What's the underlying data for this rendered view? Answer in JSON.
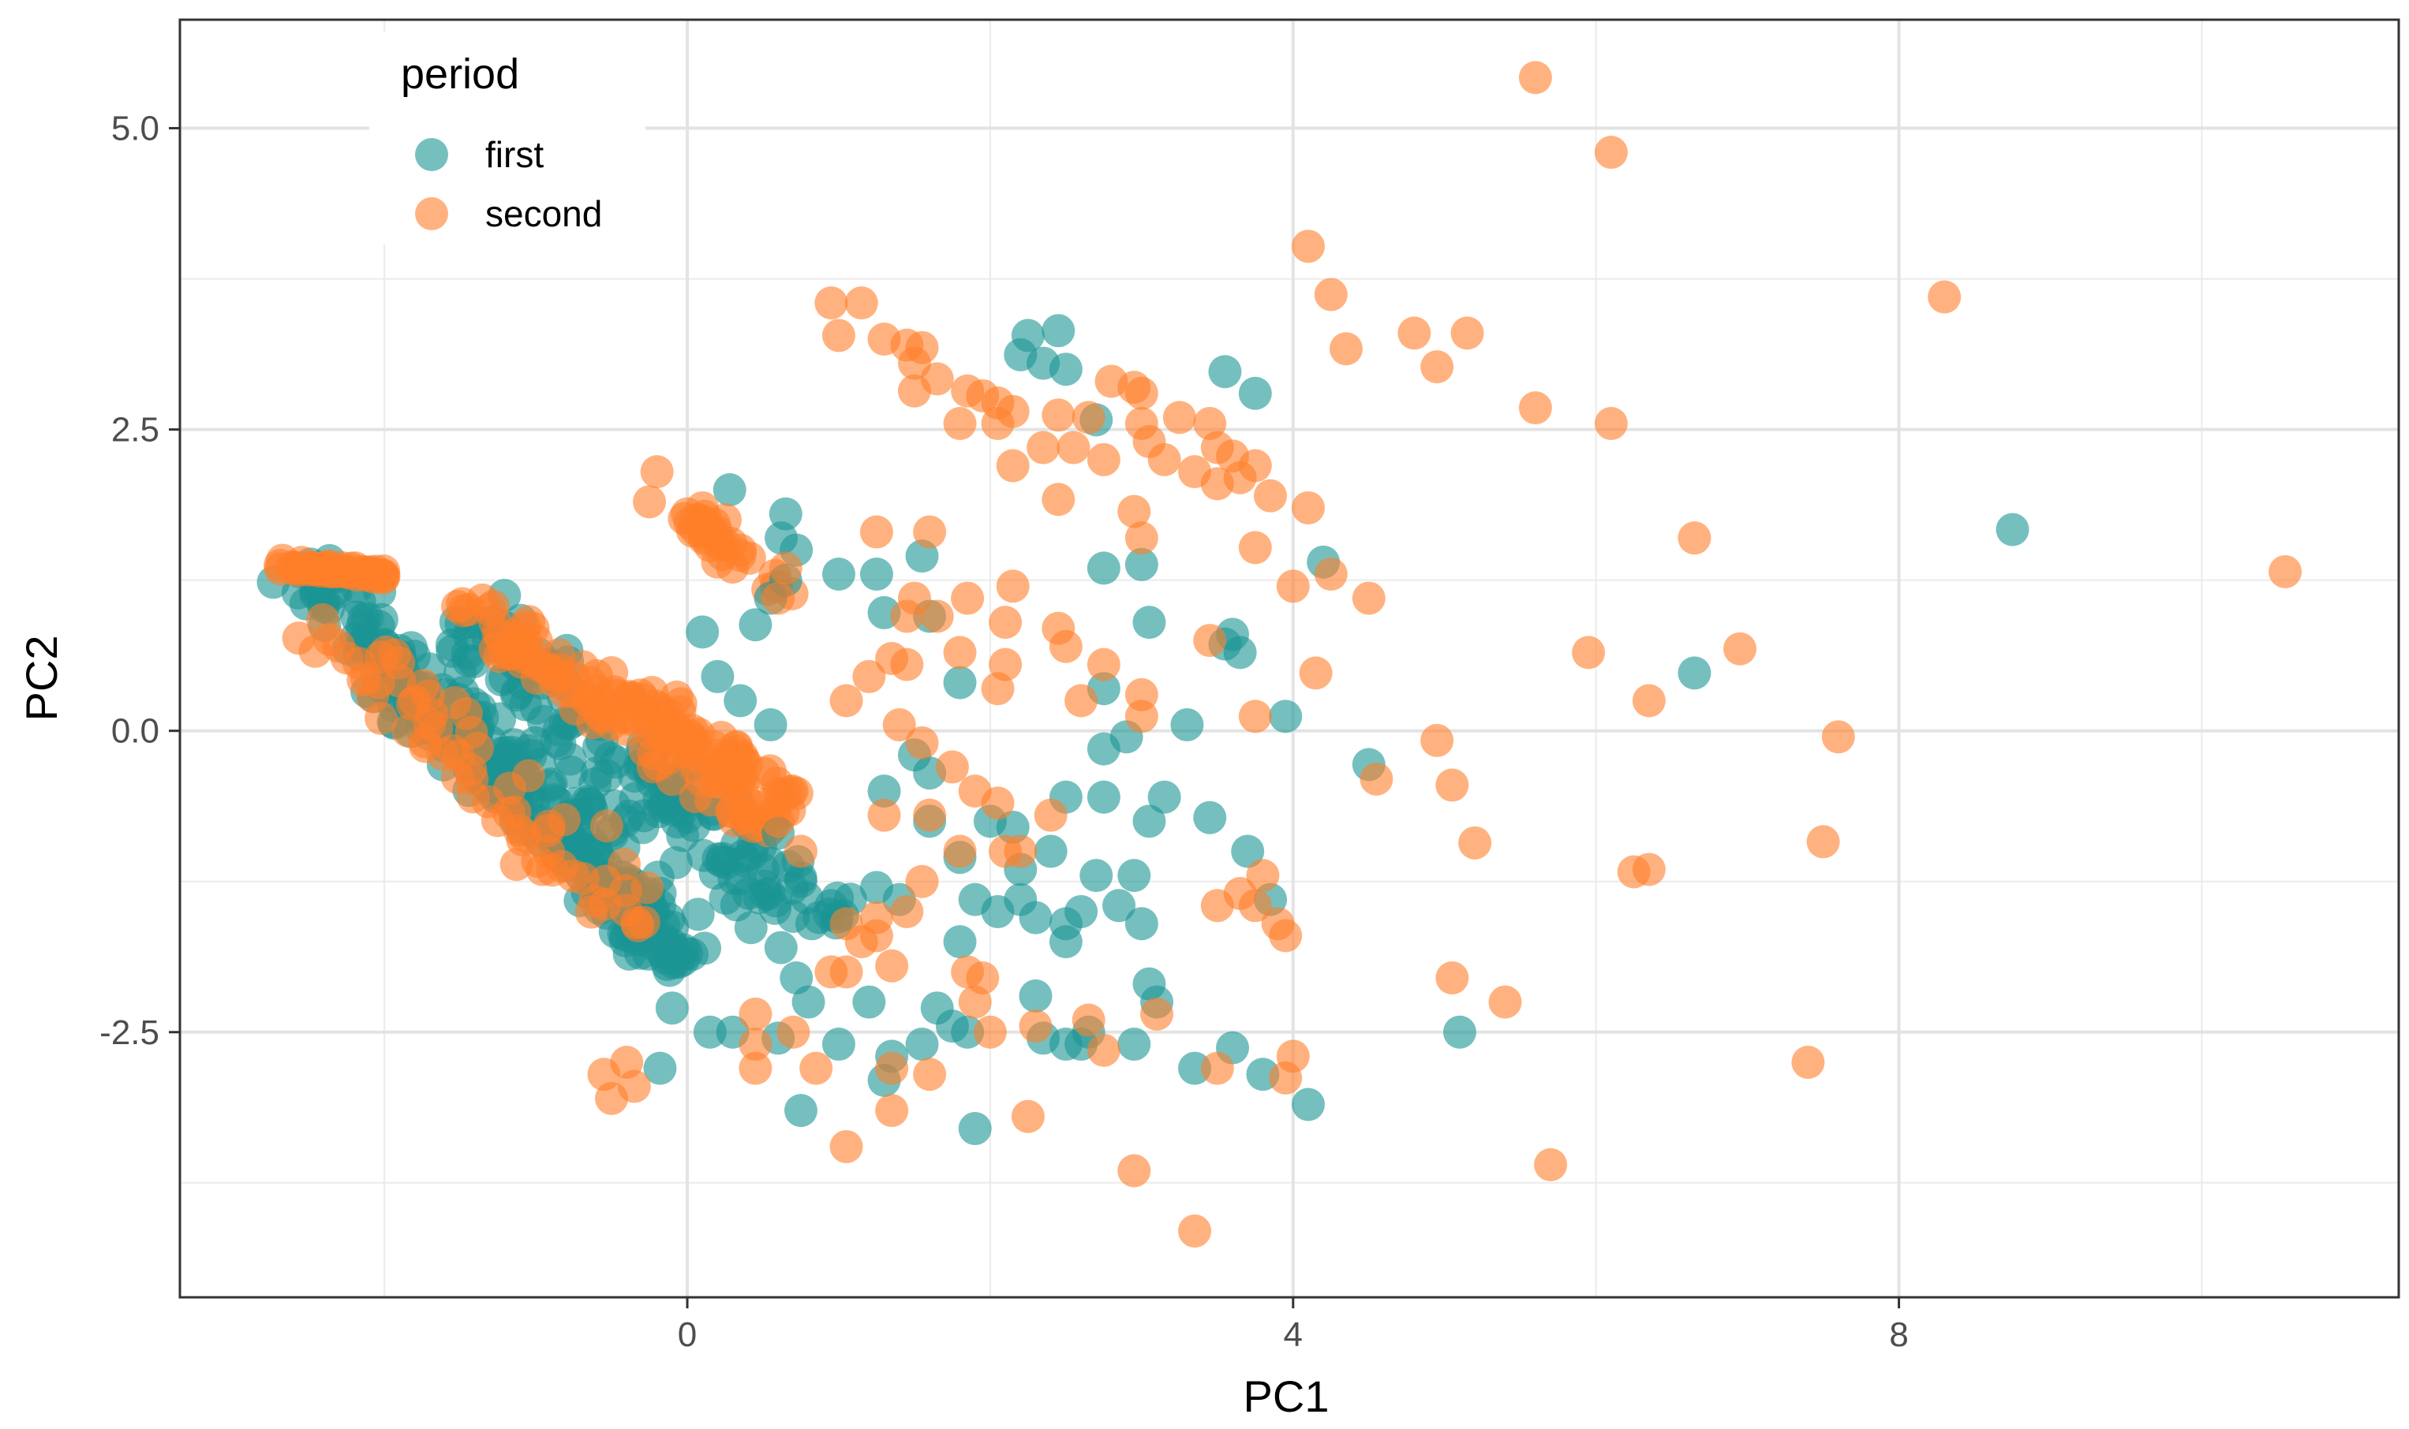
{
  "chart_data": {
    "type": "scatter",
    "title": "",
    "xlabel": "PC1",
    "ylabel": "PC2",
    "xlim": [
      -3.35,
      11.3
    ],
    "ylim": [
      -4.7,
      5.9
    ],
    "x_ticks": [
      0,
      4,
      8
    ],
    "x_tick_labels": [
      "0",
      "4",
      "8"
    ],
    "y_ticks": [
      -2.5,
      0.0,
      2.5,
      5.0
    ],
    "y_tick_labels": [
      "-2.5",
      "0.0",
      "2.5",
      "5.0"
    ],
    "x_minor_gridlines": [
      -2,
      2,
      6,
      10
    ],
    "y_minor_gridlines": [
      -3.75,
      -1.25,
      1.25,
      3.75
    ],
    "grid": true,
    "theme": "bw",
    "legend": {
      "title": "period",
      "placement": "top-left",
      "entries": [
        {
          "label": "first",
          "color": "#1b9494"
        },
        {
          "label": "second",
          "color": "#ff7f2a"
        }
      ]
    },
    "point_alpha": 0.6,
    "series": [
      {
        "name": "first",
        "color": "#1b9494",
        "points": [
          [
            2.25,
            3.28
          ],
          [
            2.45,
            3.32
          ],
          [
            2.2,
            3.12
          ],
          [
            2.35,
            3.05
          ],
          [
            2.5,
            3.0
          ],
          [
            3.55,
            2.98
          ],
          [
            3.75,
            2.8
          ],
          [
            2.7,
            2.58
          ],
          [
            0.28,
            2.0
          ],
          [
            0.65,
            1.8
          ],
          [
            0.62,
            1.6
          ],
          [
            0.72,
            1.5
          ],
          [
            0.65,
            1.25
          ],
          [
            0.55,
            1.1
          ],
          [
            1.0,
            1.3
          ],
          [
            1.25,
            1.3
          ],
          [
            1.55,
            1.45
          ],
          [
            1.6,
            0.95
          ],
          [
            0.45,
            0.88
          ],
          [
            0.1,
            0.82
          ],
          [
            1.3,
            0.98
          ],
          [
            2.75,
            1.35
          ],
          [
            3.0,
            1.38
          ],
          [
            3.05,
            0.9
          ],
          [
            3.6,
            0.8
          ],
          [
            3.65,
            0.65
          ],
          [
            3.55,
            0.72
          ],
          [
            4.2,
            1.4
          ],
          [
            3.95,
            0.12
          ],
          [
            8.75,
            1.67
          ],
          [
            6.65,
            0.48
          ],
          [
            4.5,
            -0.28
          ],
          [
            5.1,
            -2.5
          ],
          [
            4.1,
            -3.1
          ],
          [
            3.8,
            -2.85
          ],
          [
            3.6,
            -2.63
          ],
          [
            3.35,
            -2.8
          ],
          [
            3.1,
            -2.25
          ],
          [
            3.05,
            -2.1
          ],
          [
            2.95,
            -2.6
          ],
          [
            2.65,
            -2.5
          ],
          [
            2.6,
            -2.6
          ],
          [
            2.5,
            -2.6
          ],
          [
            2.35,
            -2.55
          ],
          [
            2.3,
            -2.2
          ],
          [
            1.9,
            -3.3
          ],
          [
            1.85,
            -2.5
          ],
          [
            1.75,
            -2.45
          ],
          [
            1.65,
            -2.3
          ],
          [
            1.55,
            -2.6
          ],
          [
            1.35,
            -2.7
          ],
          [
            1.3,
            -2.9
          ],
          [
            1.2,
            -2.25
          ],
          [
            1.0,
            -2.6
          ],
          [
            0.75,
            -3.15
          ],
          [
            0.8,
            -2.25
          ],
          [
            0.72,
            -2.05
          ],
          [
            0.6,
            -2.55
          ],
          [
            0.3,
            -2.5
          ],
          [
            0.15,
            -2.5
          ],
          [
            -0.1,
            -2.3
          ],
          [
            -0.18,
            -2.8
          ],
          [
            1.8,
            -1.75
          ],
          [
            1.9,
            -1.4
          ],
          [
            2.05,
            -1.5
          ],
          [
            2.2,
            -1.15
          ],
          [
            2.3,
            -1.55
          ],
          [
            2.5,
            -1.6
          ],
          [
            2.5,
            -1.75
          ],
          [
            2.6,
            -1.5
          ],
          [
            2.7,
            -1.2
          ],
          [
            2.85,
            -1.45
          ],
          [
            2.95,
            -1.2
          ],
          [
            3.0,
            -1.6
          ],
          [
            3.05,
            -0.75
          ],
          [
            2.75,
            -0.55
          ],
          [
            2.75,
            -0.15
          ],
          [
            2.5,
            -0.55
          ],
          [
            2.75,
            0.35
          ],
          [
            2.0,
            -0.75
          ],
          [
            2.15,
            -0.8
          ],
          [
            2.2,
            -1.4
          ],
          [
            2.4,
            -1.0
          ],
          [
            1.8,
            0.4
          ],
          [
            1.5,
            -0.2
          ],
          [
            1.6,
            -0.35
          ],
          [
            1.3,
            -0.5
          ],
          [
            1.25,
            -1.3
          ],
          [
            1.4,
            -1.4
          ],
          [
            0.55,
            -1.1
          ],
          [
            0.6,
            -0.85
          ],
          [
            0.95,
            -1.45
          ],
          [
            0.75,
            -1.25
          ],
          [
            0.2,
            0.45
          ],
          [
            1.6,
            -0.75
          ],
          [
            1.8,
            -1.05
          ],
          [
            3.7,
            -1.0
          ],
          [
            3.85,
            -1.4
          ],
          [
            3.3,
            0.05
          ],
          [
            2.9,
            -0.05
          ],
          [
            3.15,
            -0.55
          ],
          [
            3.45,
            -0.72
          ],
          [
            0.35,
            0.25
          ],
          [
            0.55,
            0.05
          ]
        ],
        "clusters": [
          {
            "x": [
              -2.6,
              0.0
            ],
            "y": [
              1.35,
              -1.9
            ],
            "thickness": 0.38,
            "n": 220
          },
          {
            "x": [
              -1.5,
              0.9
            ],
            "y": [
              0.95,
              -1.7
            ],
            "thickness": 0.42,
            "n": 140
          },
          {
            "x": [
              -2.0,
              -0.4
            ],
            "y": [
              0.55,
              -0.9
            ],
            "thickness": 0.45,
            "n": 60
          }
        ]
      },
      {
        "name": "second",
        "color": "#ff7f2a",
        "points": [
          [
            5.6,
            5.42
          ],
          [
            6.1,
            4.8
          ],
          [
            4.1,
            4.02
          ],
          [
            4.25,
            3.62
          ],
          [
            8.3,
            3.6
          ],
          [
            4.35,
            3.17
          ],
          [
            4.8,
            3.3
          ],
          [
            4.95,
            3.02
          ],
          [
            5.15,
            3.3
          ],
          [
            5.6,
            2.68
          ],
          [
            6.1,
            2.55
          ],
          [
            6.65,
            1.6
          ],
          [
            0.95,
            3.55
          ],
          [
            1.15,
            3.55
          ],
          [
            1.0,
            3.28
          ],
          [
            1.3,
            3.25
          ],
          [
            1.45,
            3.2
          ],
          [
            1.55,
            3.18
          ],
          [
            1.5,
            3.05
          ],
          [
            1.5,
            2.82
          ],
          [
            1.65,
            2.92
          ],
          [
            1.85,
            2.82
          ],
          [
            1.95,
            2.78
          ],
          [
            2.05,
            2.72
          ],
          [
            2.15,
            2.65
          ],
          [
            2.45,
            2.62
          ],
          [
            2.65,
            2.6
          ],
          [
            2.8,
            2.9
          ],
          [
            2.95,
            2.85
          ],
          [
            3.0,
            2.8
          ],
          [
            3.25,
            2.6
          ],
          [
            3.45,
            2.55
          ],
          [
            3.5,
            2.35
          ],
          [
            3.6,
            2.28
          ],
          [
            3.65,
            2.1
          ],
          [
            3.75,
            2.2
          ],
          [
            3.85,
            1.95
          ],
          [
            4.1,
            1.85
          ],
          [
            1.8,
            2.55
          ],
          [
            2.05,
            2.55
          ],
          [
            2.15,
            2.2
          ],
          [
            2.35,
            2.35
          ],
          [
            2.55,
            2.35
          ],
          [
            2.75,
            2.25
          ],
          [
            3.0,
            2.55
          ],
          [
            3.05,
            2.4
          ],
          [
            3.15,
            2.25
          ],
          [
            3.35,
            2.15
          ],
          [
            3.5,
            2.05
          ],
          [
            2.45,
            1.92
          ],
          [
            2.95,
            1.82
          ],
          [
            3.0,
            1.6
          ],
          [
            3.75,
            1.52
          ],
          [
            4.0,
            1.2
          ],
          [
            4.25,
            1.3
          ],
          [
            4.5,
            1.1
          ],
          [
            5.95,
            0.65
          ],
          [
            6.95,
            0.68
          ],
          [
            6.35,
            0.25
          ],
          [
            4.15,
            0.48
          ],
          [
            3.75,
            0.12
          ],
          [
            3.45,
            0.75
          ],
          [
            3.0,
            0.12
          ],
          [
            3.0,
            0.3
          ],
          [
            2.6,
            0.25
          ],
          [
            2.75,
            0.55
          ],
          [
            2.5,
            0.7
          ],
          [
            2.45,
            0.85
          ],
          [
            2.1,
            0.9
          ],
          [
            2.15,
            1.2
          ],
          [
            2.1,
            0.55
          ],
          [
            2.05,
            0.35
          ],
          [
            1.8,
            0.65
          ],
          [
            1.65,
            0.95
          ],
          [
            1.85,
            1.1
          ],
          [
            1.5,
            1.1
          ],
          [
            1.45,
            0.95
          ],
          [
            1.25,
            1.65
          ],
          [
            1.6,
            1.65
          ],
          [
            1.45,
            0.55
          ],
          [
            1.35,
            0.6
          ],
          [
            1.2,
            0.45
          ],
          [
            1.05,
            0.25
          ],
          [
            1.4,
            0.05
          ],
          [
            1.55,
            -0.1
          ],
          [
            1.75,
            -0.3
          ],
          [
            1.9,
            -0.5
          ],
          [
            2.1,
            -1.0
          ],
          [
            1.3,
            -0.7
          ],
          [
            1.6,
            -0.7
          ],
          [
            1.8,
            -1.0
          ],
          [
            0.65,
            1.35
          ],
          [
            0.6,
            1.1
          ],
          [
            0.35,
            1.5
          ],
          [
            0.2,
            1.4
          ],
          [
            0.0,
            1.8
          ],
          [
            -0.25,
            1.9
          ],
          [
            -0.2,
            2.15
          ],
          [
            0.1,
            1.85
          ],
          [
            0.25,
            1.75
          ],
          [
            7.6,
            -0.05
          ],
          [
            4.95,
            -0.08
          ],
          [
            4.55,
            -0.4
          ],
          [
            5.05,
            -0.45
          ],
          [
            5.2,
            -0.93
          ],
          [
            7.5,
            -0.92
          ],
          [
            6.35,
            -1.15
          ],
          [
            6.25,
            -1.17
          ],
          [
            5.05,
            -2.05
          ],
          [
            5.4,
            -2.25
          ],
          [
            7.4,
            -2.75
          ],
          [
            5.7,
            -3.6
          ],
          [
            3.8,
            -1.2
          ],
          [
            3.9,
            -1.6
          ],
          [
            3.75,
            -1.45
          ],
          [
            3.65,
            -1.35
          ],
          [
            3.5,
            -1.45
          ],
          [
            3.95,
            -1.7
          ],
          [
            4.0,
            -2.7
          ],
          [
            3.95,
            -2.88
          ],
          [
            3.35,
            -4.15
          ],
          [
            2.95,
            -3.65
          ],
          [
            3.1,
            -2.35
          ],
          [
            3.5,
            -2.8
          ],
          [
            2.75,
            -2.65
          ],
          [
            2.65,
            -2.4
          ],
          [
            2.3,
            -2.45
          ],
          [
            2.25,
            -3.2
          ],
          [
            2.0,
            -2.5
          ],
          [
            1.9,
            -2.25
          ],
          [
            1.95,
            -2.05
          ],
          [
            1.6,
            -2.85
          ],
          [
            1.35,
            -2.8
          ],
          [
            1.35,
            -3.15
          ],
          [
            1.05,
            -3.45
          ],
          [
            0.85,
            -2.8
          ],
          [
            0.45,
            -2.6
          ],
          [
            0.45,
            -2.8
          ],
          [
            -0.35,
            -2.95
          ],
          [
            -0.4,
            -2.75
          ],
          [
            -0.55,
            -2.85
          ],
          [
            -0.5,
            -3.05
          ],
          [
            1.05,
            -1.6
          ],
          [
            1.15,
            -1.75
          ],
          [
            1.25,
            -1.7
          ],
          [
            1.35,
            -1.95
          ],
          [
            1.05,
            -2.0
          ],
          [
            1.25,
            -1.55
          ],
          [
            1.85,
            -2.0
          ],
          [
            2.05,
            -0.6
          ],
          [
            2.2,
            -1.0
          ],
          [
            0.45,
            -2.35
          ],
          [
            10.55,
            1.32
          ],
          [
            0.75,
            -1.0
          ],
          [
            0.6,
            -0.75
          ],
          [
            0.7,
            -2.5
          ],
          [
            0.95,
            -2.0
          ],
          [
            1.45,
            -1.5
          ],
          [
            1.55,
            -1.25
          ],
          [
            2.4,
            -0.7
          ]
        ],
        "clusters": [
          {
            "x": [
              -2.7,
              -2.0
            ],
            "y": [
              1.37,
              1.3
            ],
            "thickness": 0.06,
            "n": 45
          },
          {
            "x": [
              -1.5,
              0.6
            ],
            "y": [
              1.1,
              -0.8
            ],
            "thickness": 0.3,
            "n": 110
          },
          {
            "x": [
              -0.4,
              0.75
            ],
            "y": [
              0.3,
              -0.55
            ],
            "thickness": 0.22,
            "n": 60
          },
          {
            "x": [
              -2.5,
              -0.3
            ],
            "y": [
              0.9,
              -1.6
            ],
            "thickness": 0.4,
            "n": 70
          },
          {
            "x": [
              0.0,
              0.7
            ],
            "y": [
              1.8,
              1.1
            ],
            "thickness": 0.15,
            "n": 30
          }
        ]
      }
    ]
  }
}
